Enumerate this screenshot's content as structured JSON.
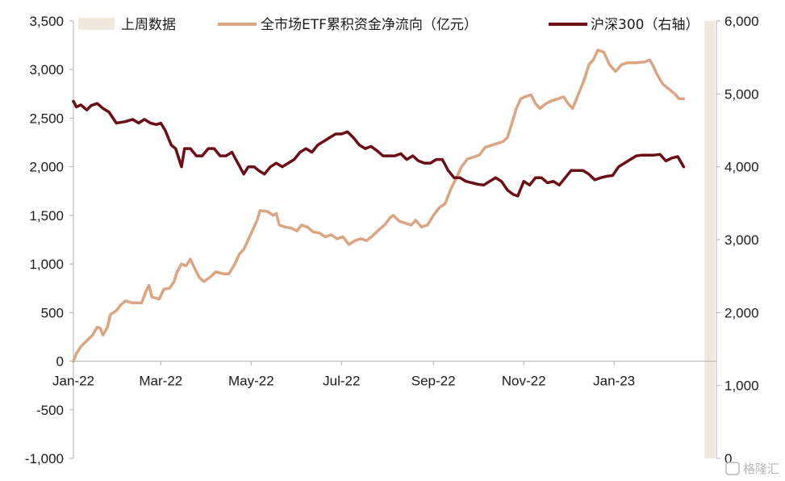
{
  "chart_data": {
    "type": "line",
    "title": "",
    "xlabel": "",
    "ylabel": "",
    "y_left_range": [
      -1000,
      3500
    ],
    "y_left_ticks": [
      "-1,000",
      "-500",
      "0",
      "500",
      "1,000",
      "1,500",
      "2,000",
      "2,500",
      "3,000",
      "3,500"
    ],
    "y_right_range": [
      0,
      6000
    ],
    "y_right_ticks": [
      "0",
      "1,000",
      "2,000",
      "3,000",
      "4,000",
      "5,000",
      "6,000"
    ],
    "x_range": [
      "2022-01-01",
      "2023-03-10"
    ],
    "x_ticks": [
      {
        "date": "2022-01-01",
        "label": "Jan-22"
      },
      {
        "date": "2022-03-01",
        "label": "Mar-22"
      },
      {
        "date": "2022-05-01",
        "label": "May-22"
      },
      {
        "date": "2022-07-01",
        "label": "Jul-22"
      },
      {
        "date": "2022-09-01",
        "label": "Sep-22"
      },
      {
        "date": "2022-11-01",
        "label": "Nov-22"
      },
      {
        "date": "2023-01-01",
        "label": "Jan-23"
      }
    ],
    "grid": false,
    "legend_placement": "top",
    "highlight": {
      "name": "上周数据",
      "start": "2023-03-03",
      "end": "2023-03-10",
      "color": "#f1e8dd"
    },
    "series": [
      {
        "name": "全市场ETF累积资金净流向（亿元）",
        "axis": "left",
        "color": "#dba583",
        "points": [
          [
            "2022-01-01",
            0
          ],
          [
            "2022-01-03",
            80
          ],
          [
            "2022-01-06",
            150
          ],
          [
            "2022-01-10",
            210
          ],
          [
            "2022-01-14",
            270
          ],
          [
            "2022-01-17",
            350
          ],
          [
            "2022-01-19",
            340
          ],
          [
            "2022-01-21",
            270
          ],
          [
            "2022-01-24",
            350
          ],
          [
            "2022-01-26",
            480
          ],
          [
            "2022-01-30",
            520
          ],
          [
            "2022-02-02",
            580
          ],
          [
            "2022-02-05",
            620
          ],
          [
            "2022-02-10",
            600
          ],
          [
            "2022-02-16",
            600
          ],
          [
            "2022-02-19",
            720
          ],
          [
            "2022-02-21",
            780
          ],
          [
            "2022-02-23",
            660
          ],
          [
            "2022-02-28",
            640
          ],
          [
            "2022-03-03",
            740
          ],
          [
            "2022-03-07",
            750
          ],
          [
            "2022-03-10",
            820
          ],
          [
            "2022-03-12",
            920
          ],
          [
            "2022-03-15",
            1000
          ],
          [
            "2022-03-18",
            980
          ],
          [
            "2022-03-21",
            1050
          ],
          [
            "2022-03-24",
            950
          ],
          [
            "2022-03-27",
            860
          ],
          [
            "2022-03-30",
            820
          ],
          [
            "2022-04-03",
            860
          ],
          [
            "2022-04-07",
            920
          ],
          [
            "2022-04-12",
            900
          ],
          [
            "2022-04-16",
            900
          ],
          [
            "2022-04-20",
            1000
          ],
          [
            "2022-04-23",
            1100
          ],
          [
            "2022-04-26",
            1150
          ],
          [
            "2022-04-29",
            1250
          ],
          [
            "2022-05-02",
            1350
          ],
          [
            "2022-05-05",
            1450
          ],
          [
            "2022-05-07",
            1550
          ],
          [
            "2022-05-12",
            1540
          ],
          [
            "2022-05-16",
            1500
          ],
          [
            "2022-05-18",
            1520
          ],
          [
            "2022-05-20",
            1400
          ],
          [
            "2022-05-24",
            1380
          ],
          [
            "2022-05-28",
            1370
          ],
          [
            "2022-06-01",
            1340
          ],
          [
            "2022-06-04",
            1400
          ],
          [
            "2022-06-08",
            1380
          ],
          [
            "2022-06-12",
            1330
          ],
          [
            "2022-06-16",
            1320
          ],
          [
            "2022-06-20",
            1280
          ],
          [
            "2022-06-24",
            1300
          ],
          [
            "2022-06-28",
            1260
          ],
          [
            "2022-07-02",
            1280
          ],
          [
            "2022-07-06",
            1200
          ],
          [
            "2022-07-10",
            1240
          ],
          [
            "2022-07-14",
            1260
          ],
          [
            "2022-07-18",
            1240
          ],
          [
            "2022-07-22",
            1290
          ],
          [
            "2022-07-26",
            1350
          ],
          [
            "2022-07-30",
            1400
          ],
          [
            "2022-08-03",
            1480
          ],
          [
            "2022-08-05",
            1500
          ],
          [
            "2022-08-09",
            1440
          ],
          [
            "2022-08-13",
            1420
          ],
          [
            "2022-08-17",
            1400
          ],
          [
            "2022-08-20",
            1450
          ],
          [
            "2022-08-24",
            1380
          ],
          [
            "2022-08-28",
            1400
          ],
          [
            "2022-09-01",
            1500
          ],
          [
            "2022-09-05",
            1580
          ],
          [
            "2022-09-09",
            1620
          ],
          [
            "2022-09-13",
            1780
          ],
          [
            "2022-09-17",
            1900
          ],
          [
            "2022-09-20",
            2000
          ],
          [
            "2022-09-24",
            2080
          ],
          [
            "2022-09-28",
            2100
          ],
          [
            "2022-10-02",
            2120
          ],
          [
            "2022-10-06",
            2200
          ],
          [
            "2022-10-10",
            2220
          ],
          [
            "2022-10-14",
            2240
          ],
          [
            "2022-10-18",
            2260
          ],
          [
            "2022-10-21",
            2300
          ],
          [
            "2022-10-24",
            2450
          ],
          [
            "2022-10-27",
            2600
          ],
          [
            "2022-10-30",
            2700
          ],
          [
            "2022-11-02",
            2720
          ],
          [
            "2022-11-06",
            2740
          ],
          [
            "2022-11-09",
            2650
          ],
          [
            "2022-11-12",
            2600
          ],
          [
            "2022-11-16",
            2650
          ],
          [
            "2022-11-20",
            2680
          ],
          [
            "2022-11-24",
            2700
          ],
          [
            "2022-11-28",
            2720
          ],
          [
            "2022-12-01",
            2650
          ],
          [
            "2022-12-04",
            2600
          ],
          [
            "2022-12-08",
            2750
          ],
          [
            "2022-12-12",
            2900
          ],
          [
            "2022-12-15",
            3050
          ],
          [
            "2022-12-18",
            3100
          ],
          [
            "2022-12-21",
            3200
          ],
          [
            "2022-12-25",
            3180
          ],
          [
            "2022-12-29",
            3050
          ],
          [
            "2023-01-02",
            2980
          ],
          [
            "2023-01-06",
            3050
          ],
          [
            "2023-01-10",
            3070
          ],
          [
            "2023-01-16",
            3070
          ],
          [
            "2023-01-22",
            3080
          ],
          [
            "2023-01-25",
            3100
          ],
          [
            "2023-01-27",
            3050
          ],
          [
            "2023-01-30",
            2950
          ],
          [
            "2023-02-03",
            2850
          ],
          [
            "2023-02-07",
            2800
          ],
          [
            "2023-02-11",
            2750
          ],
          [
            "2023-02-14",
            2700
          ],
          [
            "2023-02-17",
            2700
          ]
        ]
      },
      {
        "name": "沪深300（右轴）",
        "axis": "right",
        "color": "#6b0f16",
        "points": [
          [
            "2022-01-01",
            4900
          ],
          [
            "2022-01-03",
            4820
          ],
          [
            "2022-01-06",
            4850
          ],
          [
            "2022-01-10",
            4780
          ],
          [
            "2022-01-13",
            4840
          ],
          [
            "2022-01-17",
            4870
          ],
          [
            "2022-01-21",
            4800
          ],
          [
            "2022-01-25",
            4750
          ],
          [
            "2022-01-30",
            4600
          ],
          [
            "2022-02-05",
            4620
          ],
          [
            "2022-02-10",
            4650
          ],
          [
            "2022-02-14",
            4600
          ],
          [
            "2022-02-18",
            4650
          ],
          [
            "2022-02-22",
            4600
          ],
          [
            "2022-02-26",
            4580
          ],
          [
            "2022-03-01",
            4600
          ],
          [
            "2022-03-04",
            4500
          ],
          [
            "2022-03-08",
            4300
          ],
          [
            "2022-03-11",
            4250
          ],
          [
            "2022-03-15",
            4000
          ],
          [
            "2022-03-17",
            4250
          ],
          [
            "2022-03-21",
            4250
          ],
          [
            "2022-03-25",
            4150
          ],
          [
            "2022-03-29",
            4150
          ],
          [
            "2022-04-02",
            4250
          ],
          [
            "2022-04-06",
            4250
          ],
          [
            "2022-04-10",
            4150
          ],
          [
            "2022-04-14",
            4150
          ],
          [
            "2022-04-18",
            4200
          ],
          [
            "2022-04-22",
            4050
          ],
          [
            "2022-04-26",
            3900
          ],
          [
            "2022-04-29",
            4000
          ],
          [
            "2022-05-03",
            4000
          ],
          [
            "2022-05-06",
            3950
          ],
          [
            "2022-05-10",
            3900
          ],
          [
            "2022-05-14",
            4000
          ],
          [
            "2022-05-18",
            4050
          ],
          [
            "2022-05-22",
            4000
          ],
          [
            "2022-05-26",
            4050
          ],
          [
            "2022-05-30",
            4100
          ],
          [
            "2022-06-03",
            4200
          ],
          [
            "2022-06-07",
            4250
          ],
          [
            "2022-06-11",
            4200
          ],
          [
            "2022-06-15",
            4300
          ],
          [
            "2022-06-19",
            4350
          ],
          [
            "2022-06-23",
            4400
          ],
          [
            "2022-06-27",
            4450
          ],
          [
            "2022-07-01",
            4450
          ],
          [
            "2022-07-05",
            4480
          ],
          [
            "2022-07-09",
            4400
          ],
          [
            "2022-07-13",
            4300
          ],
          [
            "2022-07-17",
            4250
          ],
          [
            "2022-07-21",
            4280
          ],
          [
            "2022-07-25",
            4220
          ],
          [
            "2022-07-29",
            4150
          ],
          [
            "2022-08-02",
            4150
          ],
          [
            "2022-08-06",
            4150
          ],
          [
            "2022-08-10",
            4180
          ],
          [
            "2022-08-14",
            4100
          ],
          [
            "2022-08-18",
            4150
          ],
          [
            "2022-08-22",
            4080
          ],
          [
            "2022-08-26",
            4050
          ],
          [
            "2022-08-30",
            4050
          ],
          [
            "2022-09-03",
            4100
          ],
          [
            "2022-09-07",
            4100
          ],
          [
            "2022-09-11",
            3950
          ],
          [
            "2022-09-15",
            3850
          ],
          [
            "2022-09-19",
            3850
          ],
          [
            "2022-09-23",
            3800
          ],
          [
            "2022-09-27",
            3780
          ],
          [
            "2022-10-01",
            3760
          ],
          [
            "2022-10-05",
            3750
          ],
          [
            "2022-10-09",
            3800
          ],
          [
            "2022-10-13",
            3850
          ],
          [
            "2022-10-17",
            3800
          ],
          [
            "2022-10-21",
            3680
          ],
          [
            "2022-10-25",
            3620
          ],
          [
            "2022-10-28",
            3600
          ],
          [
            "2022-11-01",
            3800
          ],
          [
            "2022-11-05",
            3750
          ],
          [
            "2022-11-09",
            3850
          ],
          [
            "2022-11-13",
            3850
          ],
          [
            "2022-11-17",
            3780
          ],
          [
            "2022-11-21",
            3800
          ],
          [
            "2022-11-25",
            3750
          ],
          [
            "2022-11-29",
            3850
          ],
          [
            "2022-12-03",
            3950
          ],
          [
            "2022-12-07",
            3950
          ],
          [
            "2022-12-11",
            3950
          ],
          [
            "2022-12-15",
            3900
          ],
          [
            "2022-12-19",
            3820
          ],
          [
            "2022-12-23",
            3850
          ],
          [
            "2022-12-27",
            3870
          ],
          [
            "2022-12-31",
            3880
          ],
          [
            "2023-01-04",
            4000
          ],
          [
            "2023-01-08",
            4050
          ],
          [
            "2023-01-12",
            4100
          ],
          [
            "2023-01-16",
            4150
          ],
          [
            "2023-01-20",
            4160
          ],
          [
            "2023-01-24",
            4160
          ],
          [
            "2023-01-28",
            4160
          ],
          [
            "2023-02-01",
            4170
          ],
          [
            "2023-02-05",
            4080
          ],
          [
            "2023-02-09",
            4120
          ],
          [
            "2023-02-13",
            4140
          ],
          [
            "2023-02-17",
            4000
          ]
        ]
      }
    ]
  },
  "watermark": "格隆汇"
}
